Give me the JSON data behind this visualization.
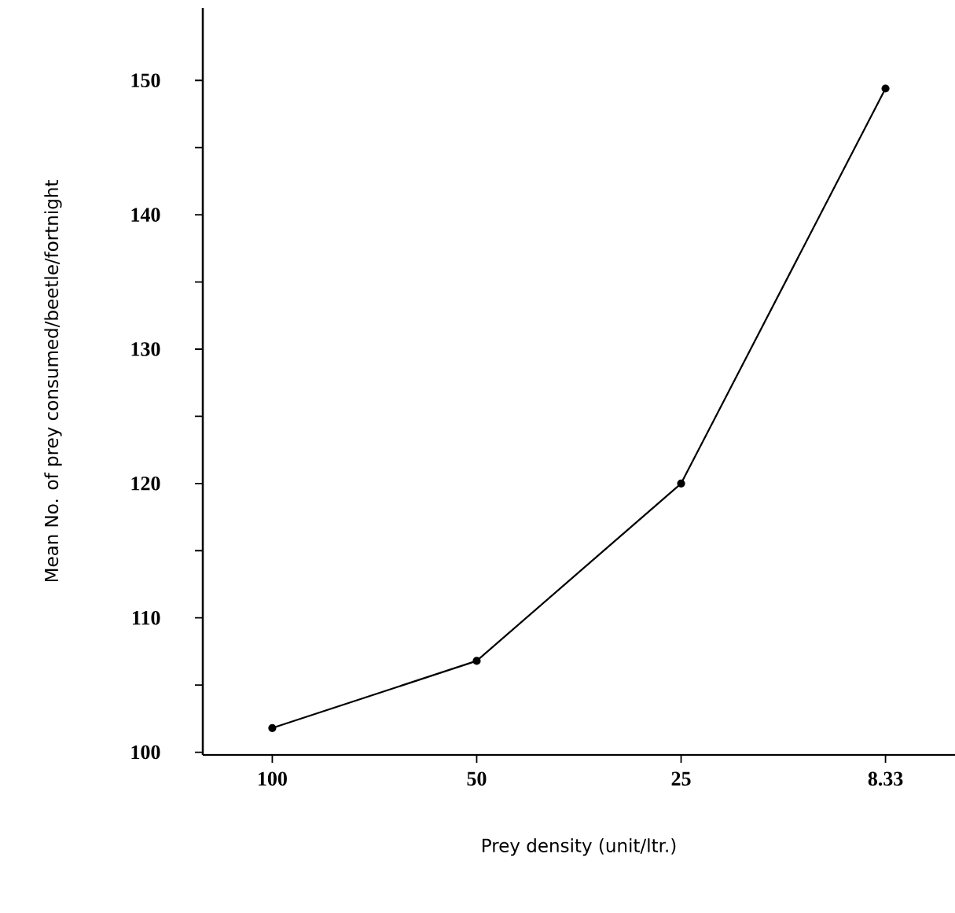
{
  "chart_data": {
    "type": "line",
    "xlabel": "Prey density (unit/ltr.)",
    "ylabel": "Mean No. of prey consumed/beetle/fortnight",
    "categories": [
      "100",
      "50",
      "25",
      "8.33"
    ],
    "values": [
      101.8,
      106.8,
      120,
      149.4
    ],
    "color": "#000000",
    "marker": "circle",
    "line_style": "solid",
    "grid": false,
    "ylim": [
      99.8,
      155.4
    ],
    "yticks": [
      100,
      {
        "value": 105,
        "label": null
      },
      110,
      {
        "value": 115,
        "label": null
      },
      120,
      {
        "value": 125,
        "label": null
      },
      130,
      {
        "value": 135,
        "label": null
      },
      140,
      {
        "value": 145,
        "label": null
      },
      150
    ]
  }
}
